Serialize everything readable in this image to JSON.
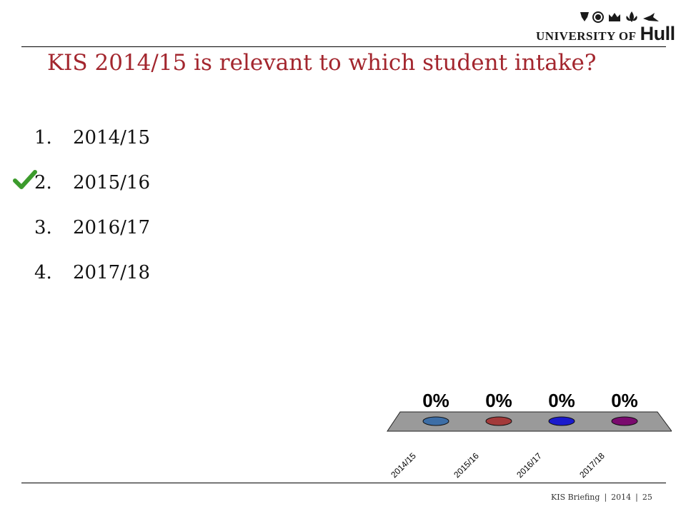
{
  "logo": {
    "prefix": "UNIVERSITY OF",
    "name": "Hull",
    "icons": [
      "tudor-rose-icon",
      "crown-icon",
      "fleur-de-lis-icon",
      "bird-icon"
    ]
  },
  "slide": {
    "title": "KIS 2014/15 is relevant to which student intake?"
  },
  "options": [
    {
      "number": "1.",
      "label": "2014/15",
      "correct": false
    },
    {
      "number": "2.",
      "label": "2015/16",
      "correct": true
    },
    {
      "number": "3.",
      "label": "2016/17",
      "correct": false
    },
    {
      "number": "4.",
      "label": "2017/18",
      "correct": false
    }
  ],
  "chart_data": {
    "type": "bar",
    "categories": [
      "2014/15",
      "2015/16",
      "2016/17",
      "2017/18"
    ],
    "values": [
      0,
      0,
      0,
      0
    ],
    "data_labels": [
      "0%",
      "0%",
      "0%",
      "0%"
    ],
    "unit": "%",
    "ylim": [
      0,
      100
    ],
    "colors": [
      "#3d6ea6",
      "#a33a3a",
      "#1a1acc",
      "#7a0a6e"
    ],
    "floor_color": "#9a9a9a"
  },
  "footer": {
    "section": "KIS Briefing",
    "year": "2014",
    "page": "25"
  }
}
